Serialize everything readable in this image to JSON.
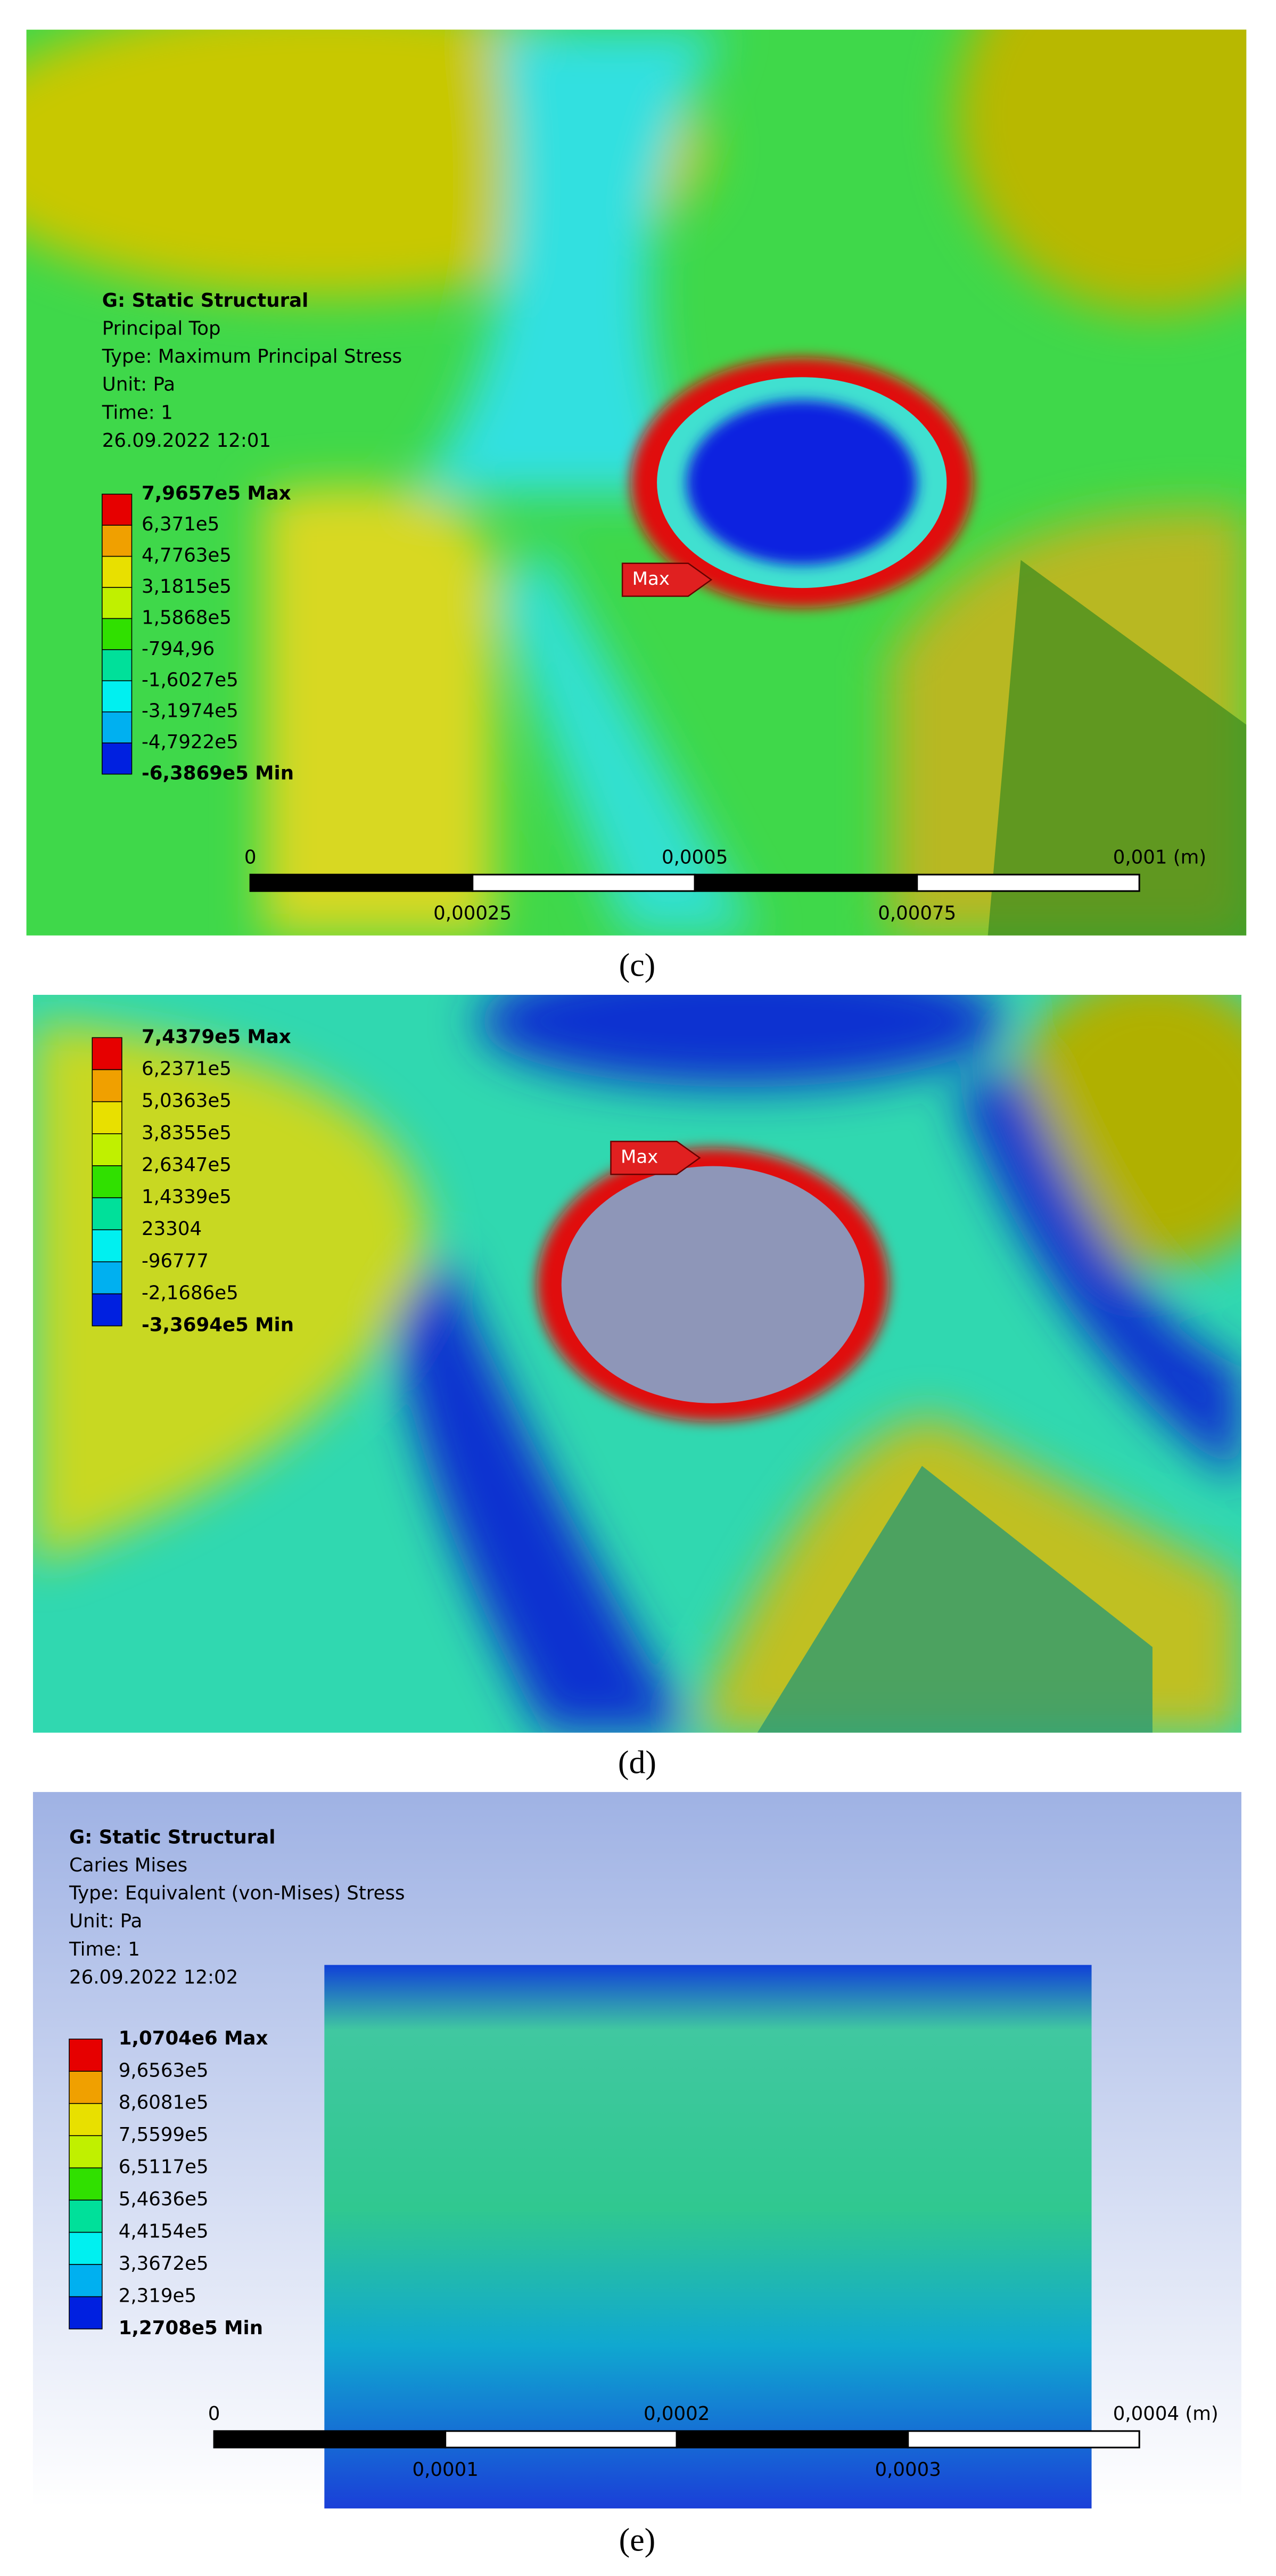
{
  "panels": [
    {
      "caption": "(c)",
      "info": [
        "G: Static Structural",
        "Principal Top",
        "Type: Maximum Principal Stress",
        "Unit: Pa",
        "Time: 1",
        "26.09.2022 12:01"
      ],
      "legend": [
        "7,9657e5 Max",
        "6,371e5",
        "4,7763e5",
        "3,1815e5",
        "1,5868e5",
        "-794,96",
        "-1,6027e5",
        "-3,1974e5",
        "-4,7922e5",
        "-6,3869e5 Min"
      ],
      "scale_top": [
        "0",
        "0,0005",
        "0,001 (m)"
      ],
      "scale_bottom": [
        "0,00025",
        "0,00075"
      ],
      "marker": "Max"
    },
    {
      "caption": "(d)",
      "legend": [
        "7,4379e5 Max",
        "6,2371e5",
        "5,0363e5",
        "3,8355e5",
        "2,6347e5",
        "1,4339e5",
        "23304",
        "-96777",
        "-2,1686e5",
        "-3,3694e5 Min"
      ],
      "marker": "Max"
    },
    {
      "caption": "(e)",
      "info": [
        "G: Static Structural",
        "Caries Mises",
        "Type: Equivalent (von-Mises) Stress",
        "Unit: Pa",
        "Time: 1",
        "26.09.2022 12:02"
      ],
      "legend": [
        "1,0704e6 Max",
        "9,6563e5",
        "8,6081e5",
        "7,5599e5",
        "6,5117e5",
        "5,4636e5",
        "4,4154e5",
        "3,3672e5",
        "2,319e5",
        "1,2708e5 Min"
      ],
      "scale_top": [
        "0",
        "0,0002",
        "0,0004 (m)"
      ],
      "scale_bottom": [
        "0,0001",
        "0,0003"
      ]
    }
  ]
}
